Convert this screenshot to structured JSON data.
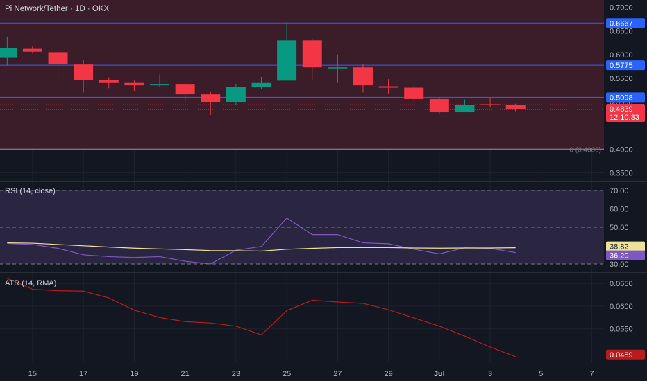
{
  "header": {
    "title": "Pi Network/Tether · 1D · OKX"
  },
  "colors": {
    "background": "#131722",
    "up": "#089981",
    "down": "#f23645",
    "zone_fill": "#3a1d28",
    "hline": "#3d5afe",
    "rsi_line": "#7e57c2",
    "rsi_ma": "#ede29a",
    "rsi_band": "#2a2540",
    "atr_line": "#b71c1c",
    "axis_text": "#b2b5be",
    "grid": "#1e222d"
  },
  "chart_data": [
    {
      "type": "candlestick",
      "title": "Pi Network/Tether · 1D · OKX",
      "x": [
        "Jun 14",
        "Jun 15",
        "Jun 16",
        "Jun 17",
        "Jun 18",
        "Jun 19",
        "Jun 20",
        "Jun 21",
        "Jun 22",
        "Jun 23",
        "Jun 24",
        "Jun 25",
        "Jun 26",
        "Jun 27",
        "Jun 28",
        "Jun 29",
        "Jun 30",
        "Jul 1",
        "Jul 2",
        "Jul 3",
        "Jul 4"
      ],
      "ohlc": [
        {
          "o": 0.593,
          "h": 0.638,
          "l": 0.577,
          "c": 0.613
        },
        {
          "o": 0.612,
          "h": 0.618,
          "l": 0.602,
          "c": 0.606
        },
        {
          "o": 0.605,
          "h": 0.609,
          "l": 0.553,
          "c": 0.58
        },
        {
          "o": 0.579,
          "h": 0.588,
          "l": 0.52,
          "c": 0.546
        },
        {
          "o": 0.546,
          "h": 0.552,
          "l": 0.529,
          "c": 0.54
        },
        {
          "o": 0.54,
          "h": 0.545,
          "l": 0.522,
          "c": 0.535
        },
        {
          "o": 0.535,
          "h": 0.558,
          "l": 0.531,
          "c": 0.538
        },
        {
          "o": 0.538,
          "h": 0.54,
          "l": 0.5,
          "c": 0.516
        },
        {
          "o": 0.516,
          "h": 0.521,
          "l": 0.472,
          "c": 0.5
        },
        {
          "o": 0.5,
          "h": 0.538,
          "l": 0.493,
          "c": 0.532
        },
        {
          "o": 0.532,
          "h": 0.553,
          "l": 0.528,
          "c": 0.54
        },
        {
          "o": 0.545,
          "h": 0.668,
          "l": 0.545,
          "c": 0.63
        },
        {
          "o": 0.63,
          "h": 0.633,
          "l": 0.546,
          "c": 0.573
        },
        {
          "o": 0.573,
          "h": 0.6,
          "l": 0.54,
          "c": 0.573
        },
        {
          "o": 0.573,
          "h": 0.58,
          "l": 0.52,
          "c": 0.535
        },
        {
          "o": 0.533,
          "h": 0.548,
          "l": 0.518,
          "c": 0.53
        },
        {
          "o": 0.53,
          "h": 0.533,
          "l": 0.503,
          "c": 0.506
        },
        {
          "o": 0.506,
          "h": 0.51,
          "l": 0.474,
          "c": 0.478
        },
        {
          "o": 0.478,
          "h": 0.505,
          "l": 0.478,
          "c": 0.494
        },
        {
          "o": 0.495,
          "h": 0.508,
          "l": 0.489,
          "c": 0.494
        },
        {
          "o": 0.494,
          "h": 0.496,
          "l": 0.48,
          "c": 0.484
        }
      ],
      "y_ticks": [
        "0.7000",
        "0.6500",
        "0.6000",
        "0.5500",
        "0.5000",
        "0.4000",
        "0.3500"
      ],
      "ylim": [
        0.3315,
        0.7155
      ],
      "horizontal_levels": [
        {
          "value": 0.6667,
          "label": "0.6667"
        },
        {
          "value": 0.5775,
          "label": "0.5775"
        },
        {
          "value": 0.5098,
          "label": "0.5098"
        },
        {
          "value": 0.4778,
          "label": "0.4778"
        }
      ],
      "fib_line": {
        "value": 0.4,
        "label": "0 (0.4000)"
      },
      "zone": {
        "from": 0.4,
        "to": 0.7155
      },
      "last_price": {
        "value": 0.4839,
        "label": "0.4839",
        "countdown": "12:10:33"
      },
      "prev_close": 0.494
    },
    {
      "type": "line",
      "title": "RSI (14, close)",
      "y_ticks": [
        "70.00",
        "60.00",
        "50.00",
        "30.00"
      ],
      "ylim": [
        25.5,
        74.5
      ],
      "band": [
        30,
        70
      ],
      "midline": 50,
      "series": [
        {
          "values": [
            41.2,
            40.6,
            38.5,
            35.0,
            34.0,
            33.5,
            34.0,
            31.5,
            30.0,
            37.5,
            39.5,
            55.0,
            46.0,
            46.0,
            41.5,
            41.0,
            38.0,
            35.5,
            38.8,
            38.5,
            36.2
          ]
        },
        {
          "values": [
            41.5,
            41.3,
            40.6,
            39.9,
            39.2,
            38.6,
            38.2,
            37.8,
            37.3,
            37.2,
            37.0,
            38.0,
            38.5,
            38.9,
            38.9,
            38.9,
            38.7,
            38.6,
            38.7,
            38.7,
            38.82
          ]
        }
      ],
      "last_labels": [
        "38.82",
        "36.20"
      ]
    },
    {
      "type": "line",
      "title": "ATR (14, RMA)",
      "y_ticks": [
        "0.0650",
        "0.0600",
        "0.0550"
      ],
      "ylim": [
        0.0478,
        0.0673
      ],
      "series": [
        {
          "values": [
            0.0661,
            0.0637,
            0.0634,
            0.0633,
            0.0618,
            0.0591,
            0.0575,
            0.0566,
            0.0563,
            0.0556,
            0.0537,
            0.059,
            0.0613,
            0.0609,
            0.0606,
            0.0592,
            0.0574,
            0.0556,
            0.0534,
            0.051,
            0.0489
          ]
        }
      ],
      "last_label": "0.0489"
    }
  ],
  "x_axis": {
    "ticks": [
      {
        "index": 1,
        "label": "15"
      },
      {
        "index": 3,
        "label": "17"
      },
      {
        "index": 5,
        "label": "19"
      },
      {
        "index": 7,
        "label": "21"
      },
      {
        "index": 9,
        "label": "23"
      },
      {
        "index": 11,
        "label": "25"
      },
      {
        "index": 13,
        "label": "27"
      },
      {
        "index": 15,
        "label": "29"
      },
      {
        "index": 17,
        "label": "Jul"
      },
      {
        "index": 19,
        "label": "3"
      },
      {
        "index": 21,
        "label": "5"
      },
      {
        "index": 23,
        "label": "7"
      }
    ]
  }
}
